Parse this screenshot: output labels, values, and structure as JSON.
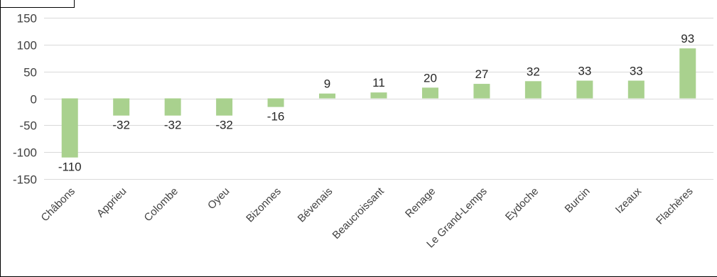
{
  "colors": {
    "bar": "#a9d18e",
    "grid": "#d9d9d9",
    "text": "#404040",
    "frame": "#000000"
  },
  "chart_data": {
    "type": "bar",
    "title": "",
    "xlabel": "",
    "ylabel": "",
    "ylim": [
      -150,
      150
    ],
    "yticks": [
      150,
      100,
      50,
      0,
      -50,
      -100,
      -150
    ],
    "grid": true,
    "legend": "none",
    "categories": [
      "Châbons",
      "Apprieu",
      "Colombe",
      "Oyeu",
      "Bizonnes",
      "Bévenais",
      "Beaucroissant",
      "Renage",
      "Le Grand-Lemps",
      "Eydoche",
      "Burcin",
      "Izeaux",
      "Flachères"
    ],
    "values": [
      -110,
      -32,
      -32,
      -32,
      -16,
      9,
      11,
      20,
      27,
      32,
      33,
      33,
      93
    ],
    "data_labels": [
      "-110",
      "-32",
      "-32",
      "-32",
      "-16",
      "9",
      "11",
      "20",
      "27",
      "32",
      "33",
      "33",
      "93"
    ]
  }
}
